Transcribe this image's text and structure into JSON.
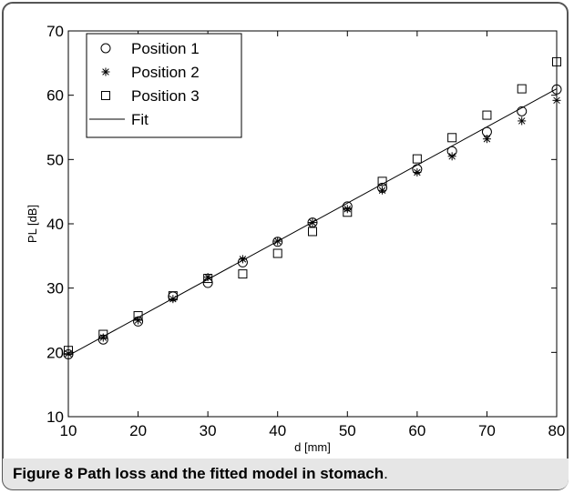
{
  "figure": {
    "caption_label": "Figure 8",
    "caption_title": "Path loss and the fitted model in stomach",
    "caption_period": "."
  },
  "chart_data": {
    "type": "scatter",
    "xlabel": "d [mm]",
    "ylabel": "PL [dB]",
    "xlim": [
      10,
      80
    ],
    "ylim": [
      10,
      70
    ],
    "xticks": [
      10,
      20,
      30,
      40,
      50,
      60,
      70,
      80
    ],
    "yticks": [
      10,
      20,
      30,
      40,
      50,
      60,
      70
    ],
    "grid": false,
    "legend_position": "top-left",
    "series": [
      {
        "name": "Position 1",
        "marker": "circle",
        "x": [
          10,
          15,
          20,
          25,
          30,
          35,
          40,
          45,
          50,
          55,
          60,
          65,
          70,
          75,
          80
        ],
        "y": [
          19.7,
          22.0,
          24.8,
          28.7,
          30.8,
          34.0,
          37.2,
          40.2,
          42.7,
          45.6,
          48.5,
          51.3,
          54.3,
          57.5,
          60.9
        ]
      },
      {
        "name": "Position 2",
        "marker": "asterisk",
        "x": [
          10,
          15,
          20,
          25,
          30,
          35,
          40,
          45,
          50,
          55,
          60,
          65,
          70,
          75,
          80
        ],
        "y": [
          19.8,
          22.3,
          25.0,
          28.3,
          31.7,
          34.5,
          37.3,
          40.2,
          42.3,
          45.2,
          48.0,
          50.5,
          53.2,
          56.0,
          59.2
        ]
      },
      {
        "name": "Position 3",
        "marker": "square",
        "x": [
          10,
          15,
          20,
          25,
          30,
          35,
          40,
          45,
          50,
          55,
          60,
          65,
          70,
          75,
          80
        ],
        "y": [
          20.3,
          22.8,
          25.7,
          28.8,
          31.5,
          32.2,
          35.4,
          38.8,
          41.8,
          46.6,
          50.1,
          53.4,
          56.9,
          61.0,
          65.2
        ]
      },
      {
        "name": "Fit",
        "marker": "line",
        "x": [
          10,
          80
        ],
        "y": [
          19.5,
          61.0
        ]
      }
    ]
  }
}
